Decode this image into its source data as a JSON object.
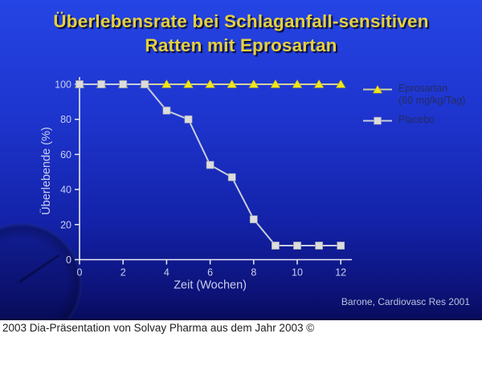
{
  "title": {
    "line1": "Überlebensrate bei Schlaganfall-sensitiven",
    "line2": "Ratten mit Eprosartan"
  },
  "citation": "Barone, Cardiovasc Res 2001",
  "footer": {
    "caption": "2003 Dia-Präsentation von Solvay Pharma aus dem Jahr 2003 ©"
  },
  "colors": {
    "background_top": "#2545e4",
    "background_bottom": "#080c5e",
    "title_text": "#e5d13d",
    "axis": "#e8ebf5",
    "tick_label": "#c9cfec",
    "axis_label": "#c9cfec",
    "legend_text": "#232c63",
    "citation_text": "#b9c2de",
    "footer_bg": "#ffffff",
    "footer_text": "#1d1d1d"
  },
  "chart_data": {
    "type": "line",
    "title": "",
    "xlabel": "Zeit (Wochen)",
    "ylabel": "Überlebende (%)",
    "x": [
      0,
      1,
      2,
      3,
      4,
      5,
      6,
      7,
      8,
      9,
      10,
      11,
      12
    ],
    "xticks": [
      0,
      2,
      4,
      6,
      8,
      10,
      12
    ],
    "yticks": [
      0,
      20,
      40,
      60,
      80,
      100
    ],
    "xlim": [
      0,
      12.5
    ],
    "ylim": [
      0,
      100
    ],
    "grid": false,
    "legend_position": "right",
    "series": [
      {
        "name": "Eprosartan (60 mg/kg/Tag)",
        "legend_line1": "Eprosartan",
        "legend_line2": "(60 mg/kg/Tag)",
        "marker": "triangle",
        "marker_color": "#f2e51c",
        "marker_edge": "#a8a818",
        "line_color": "#d3d49a",
        "values": [
          100,
          100,
          100,
          100,
          100,
          100,
          100,
          100,
          100,
          100,
          100,
          100,
          100
        ]
      },
      {
        "name": "Placebo",
        "legend_line1": "Placebo",
        "legend_line2": "",
        "marker": "square",
        "marker_color": "#dcdcdc",
        "marker_edge": "#8d93a8",
        "line_color": "#c8cedb",
        "values": [
          100,
          100,
          100,
          100,
          85,
          80,
          54,
          47,
          23,
          8,
          8,
          8,
          8
        ]
      }
    ]
  }
}
